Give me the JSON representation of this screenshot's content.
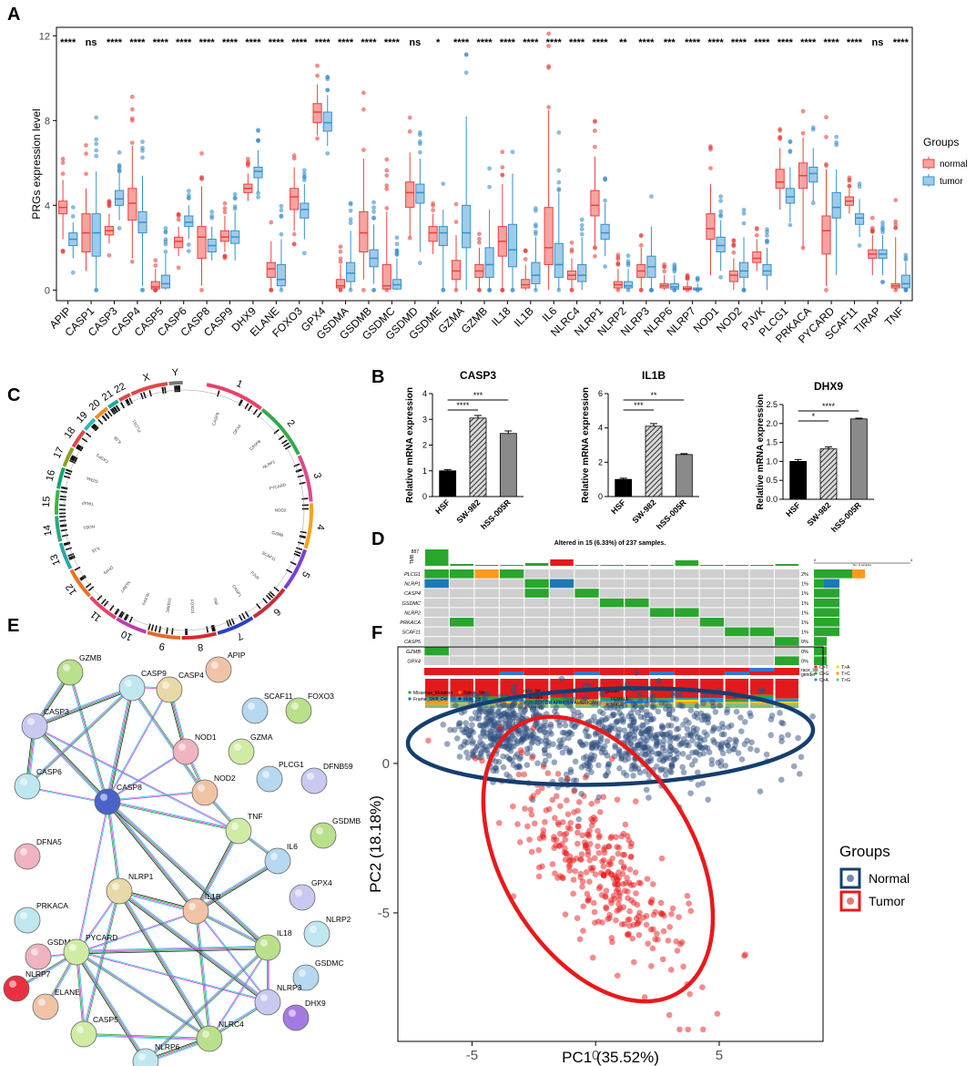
{
  "panels": {
    "A": "A",
    "B": "B",
    "C": "C",
    "D": "D",
    "E": "E",
    "F": "F"
  },
  "chart_data": [
    {
      "id": "A",
      "type": "boxplot",
      "ylabel": "PRGs expression level",
      "ylim": [
        -0.5,
        12.4
      ],
      "yticks": [
        0,
        4,
        8,
        12
      ],
      "legend": {
        "title": "Groups",
        "entries": [
          "normal",
          "tumor"
        ],
        "colors": [
          "#e8423f",
          "#3a8fc9"
        ],
        "position": "right"
      },
      "genes": [
        "APIP",
        "CASP1",
        "CASP3",
        "CASP4",
        "CASP5",
        "CASP6",
        "CASP8",
        "CASP9",
        "DHX9",
        "ELANE",
        "FOXO3",
        "GPX4",
        "GSDMA",
        "GSDMB",
        "GSDMC",
        "GSDMD",
        "GSDME",
        "GZMA",
        "GZMB",
        "IL18",
        "IL1B",
        "IL6",
        "NLRC4",
        "NLRP1",
        "NLRP2",
        "NLRP3",
        "NLRP6",
        "NLRP7",
        "NOD1",
        "NOD2",
        "PJVK",
        "PLCG1",
        "PRKACA",
        "PYCARD",
        "SCAF11",
        "TIRAP",
        "TNF"
      ],
      "significance": [
        "****",
        "ns",
        "****",
        "****",
        "****",
        "****",
        "****",
        "****",
        "****",
        "****",
        "****",
        "****",
        "****",
        "****",
        "****",
        "ns",
        "*",
        "****",
        "****",
        "****",
        "****",
        "****",
        "****",
        "****",
        "**",
        "****",
        "***",
        "****",
        "****",
        "****",
        "****",
        "****",
        "****",
        "****",
        "****",
        "ns",
        "****"
      ],
      "normal": [
        [
          2.4,
          3.6,
          3.9,
          4.2,
          5.2
        ],
        [
          0.9,
          1.8,
          2.7,
          3.6,
          4.8
        ],
        [
          2.2,
          2.6,
          2.8,
          3.0,
          3.6
        ],
        [
          1.5,
          3.3,
          4.1,
          4.8,
          6.8
        ],
        [
          0.0,
          0.05,
          0.15,
          0.4,
          1.0
        ],
        [
          1.6,
          2.0,
          2.3,
          2.5,
          3.0
        ],
        [
          0.2,
          1.5,
          2.5,
          3.0,
          4.9
        ],
        [
          1.8,
          2.3,
          2.5,
          2.8,
          3.5
        ],
        [
          4.2,
          4.6,
          4.8,
          5.0,
          5.5
        ],
        [
          0.0,
          0.6,
          1.0,
          1.3,
          2.3
        ],
        [
          2.8,
          3.8,
          4.4,
          4.8,
          5.8
        ],
        [
          7.3,
          7.9,
          8.4,
          8.8,
          9.7
        ],
        [
          0.0,
          0.1,
          0.2,
          0.5,
          1.2
        ],
        [
          0.5,
          1.8,
          2.7,
          3.7,
          6.2
        ],
        [
          0.0,
          0.05,
          0.2,
          1.2,
          3.7
        ],
        [
          2.5,
          3.9,
          4.6,
          5.1,
          6.5
        ],
        [
          1.7,
          2.3,
          2.7,
          3.0,
          3.6
        ],
        [
          0.0,
          0.5,
          0.9,
          1.4,
          2.6
        ],
        [
          0.0,
          0.6,
          0.9,
          1.2,
          2.0
        ],
        [
          0.0,
          1.6,
          2.3,
          3.0,
          5.0
        ],
        [
          0.0,
          0.1,
          0.25,
          0.5,
          1.2
        ],
        [
          0.0,
          1.2,
          2.0,
          3.9,
          8.5
        ],
        [
          0.0,
          0.5,
          0.7,
          0.9,
          1.5
        ],
        [
          2.1,
          3.5,
          4.0,
          4.7,
          6.3
        ],
        [
          0.0,
          0.1,
          0.25,
          0.4,
          1.0
        ],
        [
          0.0,
          0.6,
          0.9,
          1.2,
          2.0
        ],
        [
          0.0,
          0.1,
          0.2,
          0.3,
          0.7
        ],
        [
          0.0,
          0.02,
          0.07,
          0.15,
          0.4
        ],
        [
          0.7,
          2.4,
          2.9,
          3.6,
          5.0
        ],
        [
          0.0,
          0.4,
          0.7,
          0.9,
          1.5
        ],
        [
          0.9,
          1.3,
          1.5,
          1.8,
          2.4
        ],
        [
          3.8,
          4.8,
          5.1,
          5.7,
          6.7
        ],
        [
          2.0,
          4.8,
          5.4,
          6.0,
          7.2
        ],
        [
          0.2,
          1.7,
          2.8,
          3.5,
          5.7
        ],
        [
          3.6,
          4.0,
          4.2,
          4.4,
          4.8
        ],
        [
          0.7,
          1.5,
          1.7,
          1.9,
          2.6
        ],
        [
          0.0,
          0.1,
          0.2,
          0.3,
          2.5
        ]
      ],
      "tumor": [
        [
          1.5,
          2.1,
          2.4,
          2.7,
          3.2
        ],
        [
          0.1,
          1.6,
          2.7,
          3.6,
          5.6
        ],
        [
          3.3,
          4.0,
          4.3,
          4.7,
          5.5
        ],
        [
          0.2,
          2.7,
          3.2,
          3.7,
          5.4
        ],
        [
          0.0,
          0.1,
          0.3,
          0.7,
          1.7
        ],
        [
          2.4,
          3.0,
          3.2,
          3.5,
          4.0
        ],
        [
          1.4,
          1.8,
          2.1,
          2.4,
          3.0
        ],
        [
          1.4,
          2.2,
          2.5,
          2.8,
          3.7
        ],
        [
          4.6,
          5.3,
          5.6,
          5.8,
          6.6
        ],
        [
          0.0,
          0.2,
          0.5,
          1.2,
          2.4
        ],
        [
          2.4,
          3.4,
          3.8,
          4.1,
          5.0
        ],
        [
          6.8,
          7.5,
          7.9,
          8.4,
          9.2
        ],
        [
          0.0,
          0.4,
          0.8,
          1.3,
          2.8
        ],
        [
          0.3,
          1.1,
          1.5,
          1.9,
          3.1
        ],
        [
          0.0,
          0.05,
          0.25,
          0.5,
          1.5
        ],
        [
          1.8,
          4.1,
          4.6,
          5.0,
          6.2
        ],
        [
          0.0,
          2.1,
          2.7,
          3.0,
          3.8
        ],
        [
          0.0,
          2.0,
          2.7,
          4.0,
          8.2
        ],
        [
          0.0,
          0.6,
          1.2,
          2.0,
          3.8
        ],
        [
          0.0,
          1.1,
          1.9,
          3.1,
          5.5
        ],
        [
          0.0,
          0.3,
          0.7,
          1.3,
          2.5
        ],
        [
          0.0,
          0.6,
          1.2,
          2.2,
          4.6
        ],
        [
          0.0,
          0.4,
          0.7,
          1.2,
          2.5
        ],
        [
          1.6,
          2.4,
          2.7,
          3.1,
          4.1
        ],
        [
          0.0,
          0.1,
          0.2,
          0.4,
          1.0
        ],
        [
          0.0,
          0.6,
          1.1,
          1.6,
          3.0
        ],
        [
          0.0,
          0.05,
          0.15,
          0.3,
          0.7
        ],
        [
          0.0,
          0.01,
          0.03,
          0.1,
          0.3
        ],
        [
          0.9,
          1.8,
          2.1,
          2.5,
          3.3
        ],
        [
          0.0,
          0.6,
          0.9,
          1.3,
          2.5
        ],
        [
          0.0,
          0.7,
          0.9,
          1.2,
          2.0
        ],
        [
          3.2,
          4.1,
          4.4,
          4.8,
          5.8
        ],
        [
          4.2,
          5.1,
          5.5,
          5.8,
          6.7
        ],
        [
          0.7,
          3.4,
          3.9,
          4.6,
          5.7
        ],
        [
          2.5,
          3.1,
          3.4,
          3.6,
          4.3
        ],
        [
          0.7,
          1.5,
          1.7,
          1.9,
          2.6
        ],
        [
          0.0,
          0.1,
          0.3,
          0.7,
          1.3
        ]
      ]
    },
    {
      "id": "B",
      "type": "bar",
      "ylabel": "Relative mRNA expression",
      "plots": [
        {
          "title": "CASP3",
          "categories": [
            "HSF",
            "SW-982",
            "hSS-005R"
          ],
          "values": [
            1.0,
            3.05,
            2.45
          ],
          "errors": [
            0.05,
            0.1,
            0.1
          ],
          "ylim": [
            0,
            4
          ],
          "yticks": [
            0,
            1,
            2,
            3,
            4
          ],
          "brackets": [
            {
              "from": 0,
              "to": 1,
              "label": "****"
            },
            {
              "from": 0,
              "to": 2,
              "label": "***"
            }
          ]
        },
        {
          "title": "IL1B",
          "categories": [
            "HSF",
            "SW-982",
            "hSS-005R"
          ],
          "values": [
            1.0,
            4.1,
            2.45
          ],
          "errors": [
            0.07,
            0.15,
            0.05
          ],
          "ylim": [
            0,
            6
          ],
          "yticks": [
            0,
            2,
            4,
            6
          ],
          "brackets": [
            {
              "from": 0,
              "to": 1,
              "label": "***"
            },
            {
              "from": 0,
              "to": 2,
              "label": "**"
            }
          ]
        },
        {
          "title": "DHX9",
          "categories": [
            "HSF",
            "SW-982",
            "hSS-005R"
          ],
          "values": [
            1.0,
            1.33,
            2.12
          ],
          "errors": [
            0.05,
            0.05,
            0.02
          ],
          "ylim": [
            0,
            2.5
          ],
          "yticks": [
            0.0,
            0.5,
            1.0,
            1.5,
            2.0,
            2.5
          ],
          "brackets": [
            {
              "from": 0,
              "to": 1,
              "label": "*"
            },
            {
              "from": 0,
              "to": 2,
              "label": "****"
            }
          ]
        }
      ]
    },
    {
      "id": "C",
      "type": "circos",
      "chromosomes": [
        "1",
        "2",
        "3",
        "4",
        "5",
        "6",
        "7",
        "8",
        "9",
        "10",
        "11",
        "12",
        "13",
        "14",
        "15",
        "16",
        "17",
        "18",
        "19",
        "20",
        "21",
        "22",
        "X",
        "Y"
      ],
      "genes": [
        "CASP9",
        "GPX4",
        "CASP8",
        "NLRP1",
        "PYCARD",
        "NOD2",
        "GZMB",
        "SCAF11",
        "PJVK",
        "CASP1",
        "TNF",
        "FOXO3",
        "GSDMC",
        "NLRP2",
        "NLRP7",
        "DHX9",
        "IL18",
        "NOD1",
        "TIRAP",
        "GZMA",
        "CASP3",
        "IL1B",
        "PLCG1"
      ]
    },
    {
      "id": "D",
      "type": "oncoplot",
      "title": "Altered in 15 (6.33%) of 237 samples.",
      "tmb_label": "TMB",
      "tmb_max": "887",
      "side_axis_label": "No. of samples",
      "side_axis_ticks": [
        "0",
        "4"
      ],
      "genes": [
        "PLCG1",
        "NLRP1",
        "CASP4",
        "GSDMC",
        "NLRP2",
        "PRKACA",
        "SCAF11",
        "CASP5",
        "GZMB",
        "GPX4"
      ],
      "percents": [
        "2%",
        "1%",
        "1%",
        "1%",
        "1%",
        "1%",
        "1%",
        "0%",
        "0%",
        "0%"
      ],
      "side_counts": [
        4,
        2,
        2,
        2,
        2,
        2,
        2,
        1,
        1,
        1
      ],
      "annotation_labels": [
        "race_list",
        "gender"
      ],
      "variant_classes": [
        "Missense_Mutation",
        "Frame_Shift_Del",
        "Splice_Site",
        "Multi_Hit"
      ],
      "variant_colors": [
        "#2aa52e",
        "#1f78b4",
        "#ff9a1a",
        "#222222"
      ],
      "race_title": "race_list",
      "race": [
        "ASIAN",
        "BLACK OR AFRICAN AMERICAN",
        "WHITE"
      ],
      "race_colors": [
        "#3377cc",
        "#2aa52e",
        "#e31a1c"
      ],
      "gender_title": "gender",
      "gender": [
        "FEMALE",
        "MALE"
      ],
      "gender_colors": [
        "#3377cc",
        "#e31a1c"
      ],
      "titv": [
        "C>T",
        "C>G",
        "C>A",
        "T>A",
        "T>C",
        "T>G"
      ],
      "titv_colors": [
        "#e31a1c",
        "#2aa52e",
        "#1f90e0",
        "#ffd400",
        "#ff9a1a",
        "#7fbf7f"
      ]
    },
    {
      "id": "E",
      "type": "network",
      "nodes": [
        "GZMB",
        "CASP9",
        "CASP4",
        "APIP",
        "SCAF11",
        "CASP3",
        "NOD1",
        "GZMA",
        "FOXO3",
        "CASP6",
        "CASP8",
        "NOD2",
        "PLCG1",
        "DFNB59",
        "DFNA5",
        "TNF",
        "GSDMB",
        "PRKACA",
        "NLRP1",
        "IL1B",
        "IL6",
        "GPX4",
        "GSDMA",
        "PYCARD",
        "IL18",
        "NLRP2",
        "NLRP7",
        "ELANE",
        "GSDMC",
        "NLRP3",
        "DHX9",
        "CASP5",
        "NLRC4",
        "NLRP6"
      ]
    },
    {
      "id": "F",
      "type": "scatter",
      "xlabel": "PC1 (35.52%)",
      "ylabel": "PC2 (18.18%)",
      "xlim": [
        -8.0,
        9.2
      ],
      "ylim": [
        -9.3,
        3.9
      ],
      "xticks": [
        -5,
        0,
        5
      ],
      "yticks": [
        0,
        -5
      ],
      "legend": {
        "title": "Groups",
        "entries": [
          "Normal",
          "Tumor"
        ],
        "colors": [
          "#163e6e",
          "#e8191c"
        ],
        "position": "right"
      },
      "series": [
        {
          "name": "Normal",
          "n": 900,
          "color": "#2f4f7f",
          "clusters": [
            {
              "cx": -3.8,
              "cy": 1.1,
              "sx": 1.0,
              "sy": 0.55,
              "w": 0.35
            },
            {
              "cx": 1.8,
              "cy": 0.8,
              "sx": 2.4,
              "sy": 0.8,
              "w": 0.65
            }
          ],
          "ellipse": {
            "cx": 0.6,
            "cy": 0.9,
            "rx": 8.2,
            "ry": 1.6,
            "angle_deg": 2
          }
        },
        {
          "name": "Tumor",
          "n": 330,
          "color": "#e8191c",
          "clusters": [
            {
              "cx": 0.2,
              "cy": -3.6,
              "sx": 2.1,
              "sy": 1.3,
              "w": 1.0
            }
          ],
          "ellipse": {
            "cx": 0.1,
            "cy": -3.2,
            "rx": 6.3,
            "ry": 3.2,
            "angle_deg": -38
          }
        }
      ]
    }
  ]
}
